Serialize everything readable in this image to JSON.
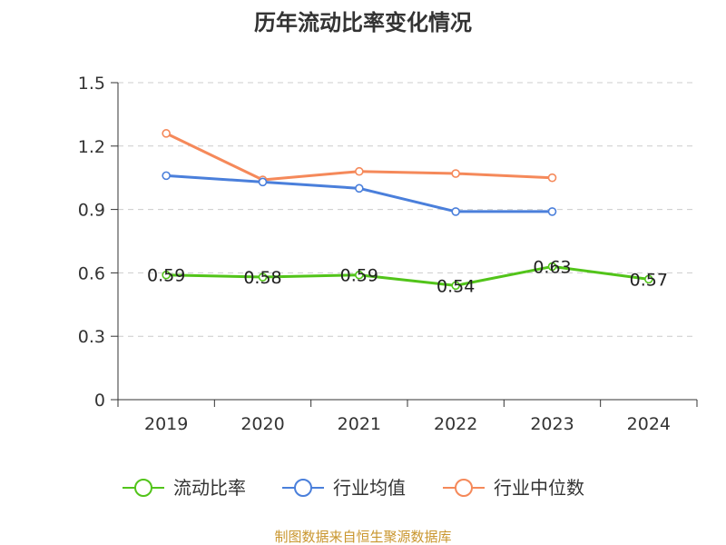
{
  "chart_data": {
    "type": "line",
    "title": "历年流动比率变化情况",
    "categories": [
      "2019",
      "2020",
      "2021",
      "2022",
      "2023",
      "2024"
    ],
    "ylim": [
      0,
      1.5
    ],
    "yticks": [
      "0",
      "0.3",
      "0.6",
      "0.9",
      "1.2",
      "1.5"
    ],
    "grid": true,
    "legend_position": "bottom",
    "series": [
      {
        "name": "流动比率",
        "color": "#52c41a",
        "values": [
          0.59,
          0.58,
          0.59,
          0.54,
          0.63,
          0.57
        ],
        "labels": [
          "0.59",
          "0.58",
          "0.59",
          "0.54",
          "0.63",
          "0.57"
        ]
      },
      {
        "name": "行业均值",
        "color": "#4a7fdb",
        "values": [
          1.06,
          1.03,
          1.0,
          0.89,
          0.89,
          null
        ]
      },
      {
        "name": "行业中位数",
        "color": "#f5895a",
        "values": [
          1.26,
          1.04,
          1.08,
          1.07,
          1.05,
          null
        ]
      }
    ]
  },
  "source_text": "制图数据来自恒生聚源数据库",
  "colors": {
    "source": "#c9962e",
    "grid": "#cccccc",
    "axis": "#333333"
  }
}
